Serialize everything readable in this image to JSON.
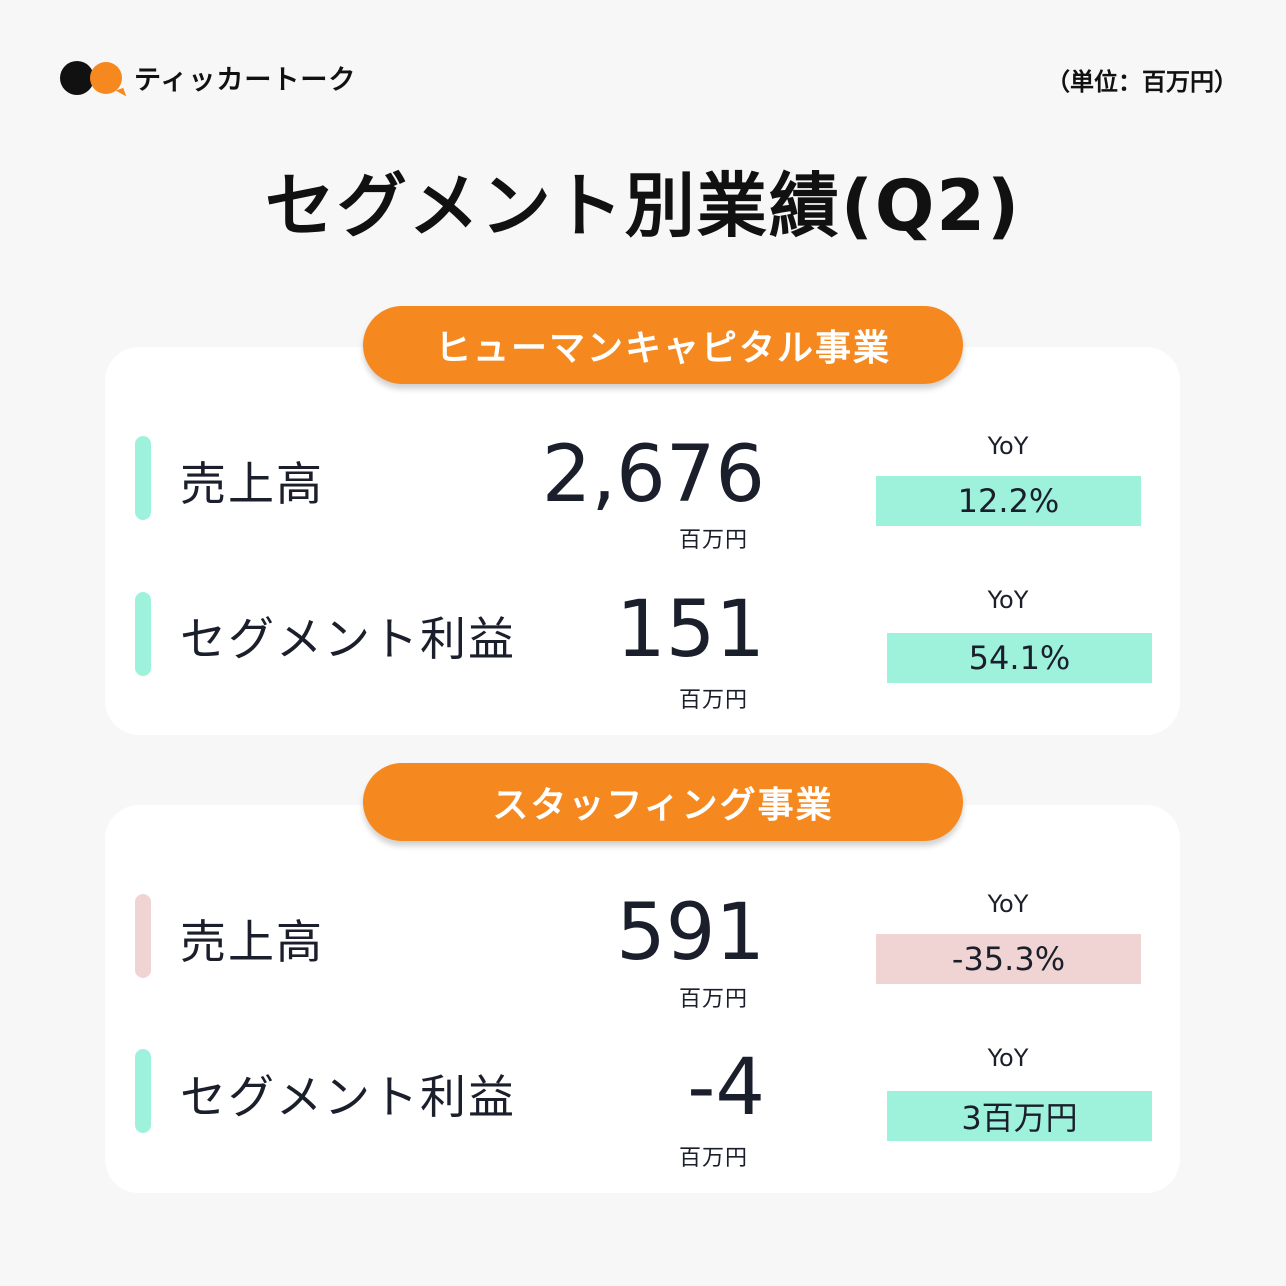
{
  "brand": {
    "name": "ティッカートーク"
  },
  "unit_note": "（単位：百万円）",
  "title": "セグメント別業績(Q2)",
  "colors": {
    "accent_orange": "#f5891f",
    "positive": "#9ef2dc",
    "negative": "#f0d4d4"
  },
  "segments": [
    {
      "name": "ヒューマンキャピタル事業",
      "rows": [
        {
          "label": "売上高",
          "value": "2,676",
          "unit": "百万円",
          "yoy_label": "YoY",
          "yoy": "12.2%",
          "trend": "positive"
        },
        {
          "label": "セグメント利益",
          "value": "151",
          "unit": "百万円",
          "yoy_label": "YoY",
          "yoy": "54.1%",
          "trend": "positive"
        }
      ]
    },
    {
      "name": "スタッフィング事業",
      "rows": [
        {
          "label": "売上高",
          "value": "591",
          "unit": "百万円",
          "yoy_label": "YoY",
          "yoy": "-35.3%",
          "trend": "negative"
        },
        {
          "label": "セグメント利益",
          "value": "-4",
          "unit": "百万円",
          "yoy_label": "YoY",
          "yoy": "3百万円",
          "trend": "positive"
        }
      ]
    }
  ]
}
